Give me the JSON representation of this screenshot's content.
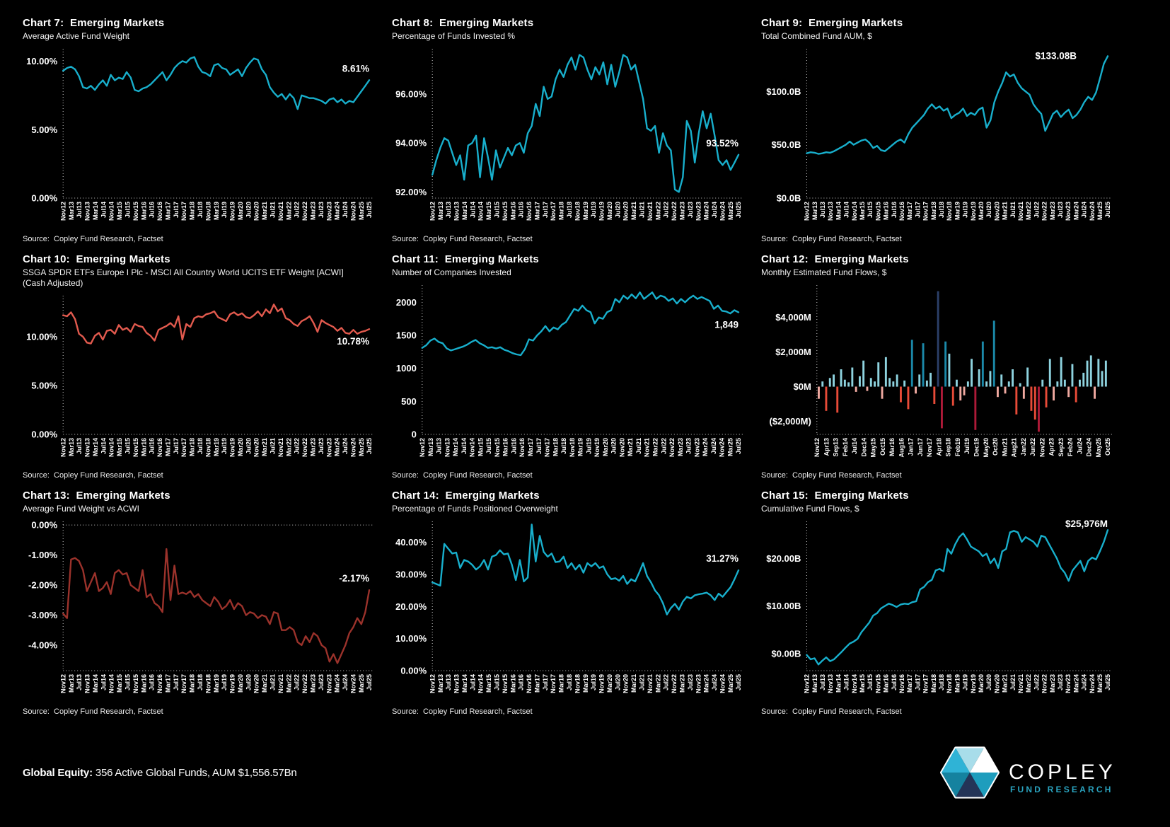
{
  "page": {
    "background": "#000000"
  },
  "source_text": "Source:  Copley Fund Research, Factset",
  "footer": {
    "label_bold": "Global Equity:",
    "label_rest": " 356 Active Global Funds, AUM $1,556.57Bn"
  },
  "logo": {
    "name": "COPLEY",
    "tagline": "FUND RESEARCH",
    "name_color": "#ffffff",
    "tagline_color": "#2AA3BF",
    "hex_segment_colors": [
      "#2FB3D6",
      "#A8DDEA",
      "#FFFFFF",
      "#1E9DBD",
      "#243457",
      "#15829F"
    ]
  },
  "palette": {
    "cyan": "#18AFCC",
    "salmon": "#E25A4E",
    "brick": "#9B322B",
    "text": "#FFFFFF",
    "bar_pos_small": "#8ED3DF",
    "bar_pos_big": "#1B89A9",
    "bar_pos_huge": "#2B3F68",
    "bar_neg_small": "#F0A9A0",
    "bar_neg_mid": "#E84B38",
    "bar_neg_big": "#AE1A38"
  },
  "x_labels": {
    "line": [
      "Nov12",
      "Mar13",
      "Jul13",
      "Nov13",
      "Mar14",
      "Jul14",
      "Nov14",
      "Mar15",
      "Jul15",
      "Nov15",
      "Mar16",
      "Jul16",
      "Nov16",
      "Mar17",
      "Jul17",
      "Nov17",
      "Mar18",
      "Jul18",
      "Nov18",
      "Mar19",
      "Jul19",
      "Nov19",
      "Mar20",
      "Jul20",
      "Nov20",
      "Mar21",
      "Jul21",
      "Nov21",
      "Mar22",
      "Jul22",
      "Nov22",
      "Mar23",
      "Jul23",
      "Nov23",
      "Mar24",
      "Jul24",
      "Nov24",
      "Mar25",
      "Jul25"
    ],
    "bar": [
      "Nov12",
      "Apr13",
      "Sep13",
      "Feb14",
      "Jul14",
      "Dec14",
      "May15",
      "Oct15",
      "Mar16",
      "Aug16",
      "Jan17",
      "Jun17",
      "Nov17",
      "Apr18",
      "Sep18",
      "Feb19",
      "Jul19",
      "Dec19",
      "May20",
      "Oct20",
      "Mar21",
      "Aug21",
      "Jan22",
      "Jun22",
      "Nov22",
      "Apr23",
      "Sep23",
      "Feb24",
      "Jul24",
      "Dec24",
      "May25",
      "Oct25"
    ]
  },
  "chart_data": [
    {
      "id": "chart-7",
      "type": "line",
      "title": "Chart 7:  Emerging Markets",
      "subtitle": "Average Active Fund Weight",
      "color_key": "cyan",
      "end_label": "8.61%",
      "end_label_pos": "above",
      "x_labels_ref": "line",
      "ylim": [
        0,
        10.9
      ],
      "zero_line": false,
      "y_ticks": [
        {
          "v": 10,
          "label": "10.00%"
        },
        {
          "v": 5,
          "label": "5.00%"
        },
        {
          "v": 0,
          "label": "0.00%"
        }
      ],
      "values": [
        9.3,
        9.5,
        9.6,
        9.4,
        8.9,
        8.1,
        8.0,
        8.2,
        7.9,
        8.3,
        8.6,
        8.2,
        9.0,
        8.6,
        8.8,
        8.7,
        9.2,
        8.8,
        7.9,
        7.8,
        8.0,
        8.1,
        8.3,
        8.6,
        8.9,
        9.2,
        8.6,
        9.0,
        9.5,
        9.8,
        10.0,
        9.9,
        10.2,
        10.3,
        9.6,
        9.2,
        9.1,
        8.9,
        9.7,
        9.8,
        9.5,
        9.4,
        9.0,
        9.2,
        9.4,
        8.9,
        9.5,
        9.9,
        10.2,
        10.1,
        9.4,
        9.0,
        8.1,
        7.7,
        7.4,
        7.6,
        7.2,
        7.6,
        7.3,
        6.5,
        7.5,
        7.4,
        7.3,
        7.3,
        7.2,
        7.1,
        6.9,
        7.2,
        7.3,
        7.0,
        7.2,
        6.9,
        7.1,
        7.0,
        7.4,
        7.8,
        8.2,
        8.61
      ]
    },
    {
      "id": "chart-8",
      "type": "line",
      "title": "Chart 8:  Emerging Markets",
      "subtitle": "Percentage of Funds Invested %",
      "color_key": "cyan",
      "end_label": "93.52%",
      "end_label_pos": "above",
      "x_labels_ref": "line",
      "ylim": [
        91.75,
        97.85
      ],
      "zero_line": false,
      "y_ticks": [
        {
          "v": 96,
          "label": "96.00%"
        },
        {
          "v": 94,
          "label": "94.00%"
        },
        {
          "v": 92,
          "label": "92.00%"
        }
      ],
      "values": [
        92.7,
        93.3,
        93.8,
        94.2,
        94.1,
        93.6,
        93.1,
        93.5,
        92.5,
        93.9,
        94.0,
        94.3,
        92.6,
        94.2,
        93.4,
        92.5,
        93.7,
        93.0,
        93.4,
        93.8,
        93.5,
        93.9,
        94.0,
        93.6,
        94.4,
        94.7,
        95.6,
        95.1,
        96.3,
        95.8,
        95.9,
        96.6,
        97.0,
        96.7,
        97.2,
        97.5,
        97.0,
        97.6,
        97.5,
        97.0,
        96.6,
        97.1,
        96.8,
        97.3,
        96.4,
        97.2,
        96.3,
        96.9,
        97.6,
        97.5,
        97.0,
        97.2,
        96.5,
        95.8,
        94.6,
        94.5,
        94.7,
        93.6,
        94.4,
        93.9,
        93.7,
        92.1,
        92.0,
        92.6,
        94.9,
        94.5,
        93.2,
        94.4,
        95.3,
        94.6,
        95.2,
        94.3,
        93.3,
        93.1,
        93.3,
        92.9,
        93.2,
        93.52
      ]
    },
    {
      "id": "chart-9",
      "type": "line",
      "title": "Chart 9:  Emerging Markets",
      "subtitle": "Total Combined Fund AUM, $",
      "color_key": "cyan",
      "end_label": "$133.08B",
      "end_label_pos": "left",
      "x_labels_ref": "line",
      "ylim": [
        0,
        140
      ],
      "zero_line": false,
      "y_ticks": [
        {
          "v": 100,
          "label": "$100.0B"
        },
        {
          "v": 50,
          "label": "$50.0B"
        },
        {
          "v": 0,
          "label": "$0.0B"
        }
      ],
      "values": [
        42,
        43,
        42.5,
        41.5,
        42,
        43,
        42.5,
        44,
        46,
        48,
        50,
        53,
        50,
        52,
        54,
        55,
        52,
        47,
        49,
        45,
        44,
        47,
        50,
        53,
        55,
        52,
        60,
        66,
        70,
        74,
        78,
        84,
        88,
        84,
        86,
        82,
        84,
        75,
        78,
        80,
        84,
        77,
        80,
        78,
        83,
        85,
        66,
        73,
        90,
        100,
        108,
        118,
        114,
        116,
        108,
        103,
        100,
        97,
        88,
        83,
        79,
        63,
        71,
        79,
        82,
        76,
        80,
        83,
        75,
        78,
        83,
        90,
        95,
        92,
        99,
        112,
        126,
        133.08
      ]
    },
    {
      "id": "chart-10",
      "type": "line",
      "title": "Chart 10:  Emerging Markets",
      "subtitle": "SSGA SPDR ETFs Europe I Plc - MSCI All Country World UCITS ETF Weight [ACWI] (Cash Adjusted)",
      "color_key": "salmon",
      "end_label": "10.78%",
      "end_label_pos": "below",
      "x_labels_ref": "line",
      "ylim": [
        0,
        14.2
      ],
      "zero_line": false,
      "y_ticks": [
        {
          "v": 10,
          "label": "10.00%"
        },
        {
          "v": 5,
          "label": "5.00%"
        },
        {
          "v": 0,
          "label": "0.00%"
        }
      ],
      "values": [
        12.2,
        12.1,
        12.5,
        11.8,
        10.3,
        10.0,
        9.4,
        9.3,
        10.1,
        10.4,
        9.7,
        10.6,
        10.7,
        10.3,
        11.2,
        10.7,
        10.9,
        10.5,
        11.3,
        11.1,
        11.0,
        10.4,
        10.1,
        9.6,
        10.7,
        10.9,
        11.1,
        11.4,
        11.0,
        12.1,
        9.7,
        11.3,
        11.0,
        11.9,
        12.1,
        12.0,
        12.3,
        12.4,
        12.6,
        12.0,
        11.8,
        11.6,
        12.3,
        12.5,
        12.2,
        12.4,
        12.0,
        11.9,
        12.2,
        12.6,
        12.1,
        12.8,
        12.4,
        13.3,
        12.6,
        12.9,
        11.9,
        11.7,
        11.3,
        11.1,
        11.6,
        11.8,
        12.1,
        11.4,
        10.5,
        11.7,
        11.4,
        11.2,
        11.0,
        10.6,
        10.9,
        10.4,
        10.3,
        10.7,
        10.3,
        10.5,
        10.6,
        10.78
      ]
    },
    {
      "id": "chart-11",
      "type": "line",
      "title": "Chart 11:  Emerging Markets",
      "subtitle": "Number of Companies Invested",
      "color_key": "cyan",
      "end_label": "1,849",
      "end_label_pos": "below",
      "x_labels_ref": "line",
      "ylim": [
        0,
        2260
      ],
      "zero_line": false,
      "y_ticks": [
        {
          "v": 2000,
          "label": "2000"
        },
        {
          "v": 1500,
          "label": "1500"
        },
        {
          "v": 1000,
          "label": "1000"
        },
        {
          "v": 500,
          "label": "500"
        },
        {
          "v": 0,
          "label": "0"
        }
      ],
      "values": [
        1310,
        1350,
        1420,
        1450,
        1400,
        1380,
        1300,
        1270,
        1290,
        1310,
        1330,
        1360,
        1400,
        1430,
        1380,
        1350,
        1310,
        1320,
        1300,
        1320,
        1280,
        1260,
        1230,
        1210,
        1200,
        1290,
        1440,
        1420,
        1500,
        1560,
        1640,
        1560,
        1620,
        1590,
        1660,
        1700,
        1800,
        1900,
        1870,
        1950,
        1880,
        1850,
        1680,
        1770,
        1750,
        1850,
        1880,
        2050,
        2000,
        2100,
        2050,
        2120,
        2060,
        2150,
        2050,
        2100,
        2150,
        2050,
        2100,
        2080,
        2020,
        2060,
        1980,
        2050,
        2000,
        2060,
        2100,
        2050,
        2080,
        2050,
        2020,
        1900,
        1950,
        1870,
        1860,
        1830,
        1880,
        1849
      ]
    },
    {
      "id": "chart-12",
      "type": "bar",
      "title": "Chart 12:  Emerging Markets",
      "subtitle": "Monthly Estimated Fund Flows, $",
      "color_key": "cyan",
      "end_label": "",
      "end_label_pos": "above",
      "x_labels_ref": "bar",
      "ylim": [
        -2750,
        5850
      ],
      "zero_line": false,
      "y_ticks": [
        {
          "v": 4000,
          "label": "$4,000M"
        },
        {
          "v": 2000,
          "label": "$2,000M"
        },
        {
          "v": 0,
          "label": "$0M"
        },
        {
          "v": -2000,
          "label": "($2,000M)"
        }
      ],
      "values": [
        -700,
        300,
        -1400,
        500,
        700,
        -1500,
        1000,
        400,
        250,
        1100,
        -300,
        600,
        1500,
        -250,
        500,
        300,
        1400,
        -700,
        1700,
        500,
        300,
        700,
        -900,
        350,
        -1300,
        2700,
        -400,
        700,
        2500,
        350,
        800,
        -1000,
        5500,
        -2400,
        2600,
        1900,
        -1100,
        400,
        -800,
        -500,
        300,
        1600,
        -2500,
        1000,
        2600,
        300,
        900,
        3800,
        -600,
        700,
        -400,
        300,
        1000,
        -1600,
        200,
        -700,
        1100,
        -1400,
        -1900,
        -2600,
        400,
        -1200,
        1600,
        -800,
        300,
        1700,
        400,
        -600,
        1300,
        -900,
        400,
        800,
        1500,
        1800,
        -700,
        1600,
        900,
        1500
      ]
    },
    {
      "id": "chart-13",
      "type": "line",
      "title": "Chart 13:  Emerging Markets",
      "subtitle": "Average Fund Weight vs ACWI",
      "color_key": "brick",
      "end_label": "-2.17%",
      "end_label_pos": "above",
      "x_labels_ref": "line",
      "ylim": [
        -4.85,
        0.12
      ],
      "zero_line": true,
      "y_ticks": [
        {
          "v": 0,
          "label": "0.00%"
        },
        {
          "v": -1,
          "label": "-1.00%"
        },
        {
          "v": -2,
          "label": "-2.00%"
        },
        {
          "v": -3,
          "label": "-3.00%"
        },
        {
          "v": -4,
          "label": "-4.00%"
        }
      ],
      "values": [
        -2.95,
        -3.1,
        -1.15,
        -1.1,
        -1.2,
        -1.5,
        -2.2,
        -1.9,
        -1.6,
        -2.2,
        -2.1,
        -1.9,
        -2.3,
        -1.6,
        -1.5,
        -1.65,
        -1.6,
        -2.0,
        -2.1,
        -2.2,
        -1.5,
        -2.4,
        -2.3,
        -2.6,
        -2.7,
        -2.9,
        -0.8,
        -2.5,
        -1.35,
        -2.3,
        -2.25,
        -2.3,
        -2.2,
        -2.4,
        -2.3,
        -2.5,
        -2.6,
        -2.7,
        -2.4,
        -2.55,
        -2.8,
        -2.7,
        -2.5,
        -2.8,
        -2.6,
        -2.7,
        -3.0,
        -2.9,
        -2.95,
        -3.1,
        -3.0,
        -3.05,
        -3.3,
        -2.9,
        -2.95,
        -3.5,
        -3.5,
        -3.4,
        -3.5,
        -3.9,
        -4.0,
        -3.7,
        -3.9,
        -3.6,
        -3.7,
        -4.0,
        -4.1,
        -4.55,
        -4.3,
        -4.6,
        -4.3,
        -4.0,
        -3.6,
        -3.4,
        -3.1,
        -3.3,
        -2.9,
        -2.17
      ]
    },
    {
      "id": "chart-14",
      "type": "line",
      "title": "Chart 14:  Emerging Markets",
      "subtitle": "Percentage of Funds Positioned Overweight",
      "color_key": "cyan",
      "end_label": "31.27%",
      "end_label_pos": "above",
      "x_labels_ref": "line",
      "ylim": [
        0,
        46.5
      ],
      "zero_line": false,
      "y_ticks": [
        {
          "v": 40,
          "label": "40.00%"
        },
        {
          "v": 30,
          "label": "30.00%"
        },
        {
          "v": 20,
          "label": "20.00%"
        },
        {
          "v": 10,
          "label": "10.00%"
        },
        {
          "v": 0,
          "label": "0.00%"
        }
      ],
      "values": [
        27.5,
        27.0,
        26.5,
        39.5,
        38.0,
        36.5,
        36.8,
        32.0,
        34.5,
        34.0,
        33.0,
        31.5,
        32.5,
        34.5,
        31.5,
        35.5,
        36.0,
        37.5,
        36.2,
        36.5,
        33.0,
        28.2,
        34.5,
        27.8,
        29.0,
        45.5,
        34.0,
        42.0,
        37.0,
        35.5,
        36.5,
        33.8,
        34.0,
        35.5,
        32.0,
        33.5,
        31.5,
        33.0,
        30.5,
        33.5,
        32.5,
        33.5,
        32.0,
        32.5,
        30.0,
        28.5,
        28.8,
        28.0,
        29.5,
        27.0,
        28.5,
        27.8,
        30.5,
        33.5,
        29.5,
        27.5,
        25.0,
        23.5,
        21.0,
        17.5,
        19.5,
        20.8,
        19.0,
        21.5,
        23.0,
        22.5,
        23.5,
        23.8,
        24.0,
        24.3,
        23.5,
        22.0,
        24.0,
        23.0,
        24.5,
        26.0,
        28.5,
        31.27
      ]
    },
    {
      "id": "chart-15",
      "type": "line",
      "title": "Chart 15:  Emerging Markets",
      "subtitle": "Cumulative Fund Flows, $",
      "color_key": "cyan",
      "end_label": "$25,976M",
      "end_label_pos": "above",
      "x_labels_ref": "line",
      "ylim": [
        -3.6,
        27.8
      ],
      "zero_line": false,
      "y_ticks": [
        {
          "v": 20,
          "label": "$20.00B"
        },
        {
          "v": 10,
          "label": "$10.00B"
        },
        {
          "v": 0,
          "label": "$0.00B"
        }
      ],
      "values": [
        -0.3,
        -1.2,
        -1.0,
        -2.3,
        -1.5,
        -0.8,
        -1.6,
        -1.2,
        -0.4,
        0.4,
        1.3,
        2.1,
        2.5,
        3.1,
        4.5,
        5.5,
        6.5,
        8.0,
        8.5,
        9.5,
        10.0,
        10.5,
        10.2,
        9.8,
        10.3,
        10.5,
        10.4,
        10.8,
        11.0,
        13.5,
        14.0,
        15.0,
        15.5,
        17.5,
        17.8,
        17.3,
        22.0,
        21.0,
        23.0,
        24.5,
        25.3,
        24.0,
        22.5,
        22.0,
        21.5,
        20.5,
        21.0,
        19.0,
        20.0,
        18.0,
        21.5,
        22.0,
        25.5,
        25.8,
        25.5,
        23.5,
        24.5,
        24.0,
        23.5,
        22.5,
        24.8,
        24.5,
        23.0,
        21.5,
        20.0,
        18.0,
        17.0,
        15.3,
        17.5,
        18.5,
        19.5,
        17.3,
        19.5,
        20.2,
        19.8,
        21.5,
        23.5,
        25.976
      ]
    }
  ]
}
